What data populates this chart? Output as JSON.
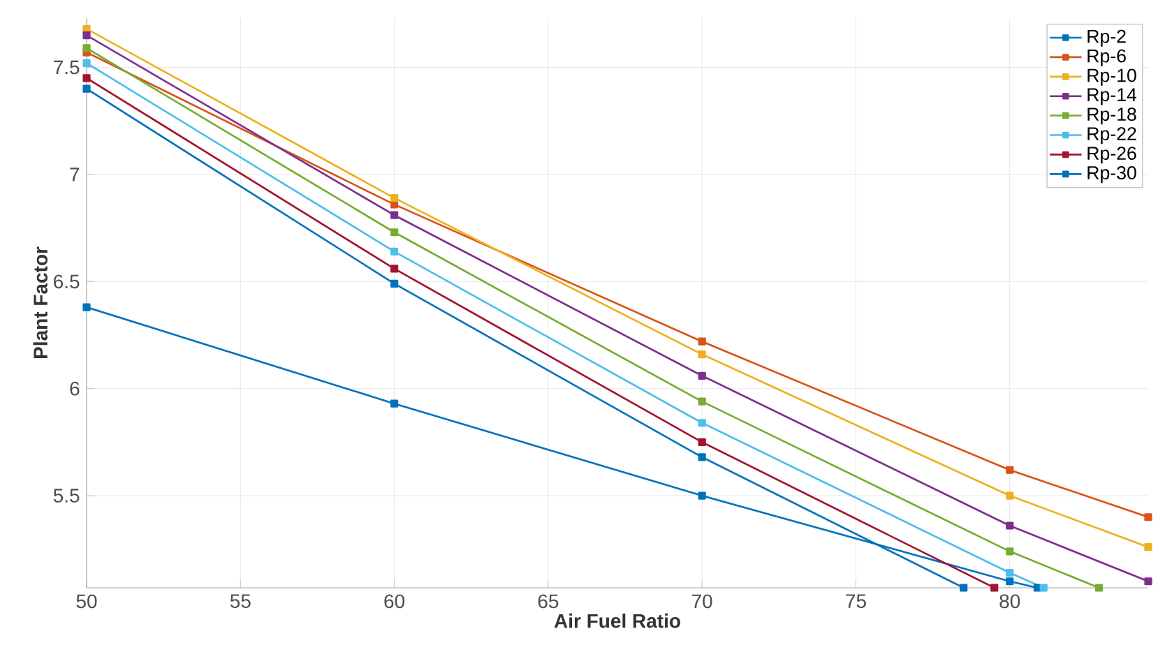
{
  "chart_data": {
    "type": "line",
    "xlabel": "Air Fuel Ratio",
    "ylabel": "Plant Factor",
    "xlim": [
      50,
      84.5
    ],
    "ylim": [
      5.07,
      7.73
    ],
    "xticks": [
      50,
      55,
      60,
      65,
      70,
      75,
      80
    ],
    "yticks": [
      5.5,
      6,
      6.5,
      7,
      7.5
    ],
    "grid": true,
    "legend": "top right",
    "marker": "square",
    "line_style": "solid",
    "series": [
      {
        "name": "Rp-2",
        "color": "#0072bd",
        "x": [
          50,
          60,
          70,
          80,
          80.9
        ],
        "values": [
          6.38,
          5.93,
          5.5,
          5.1,
          5.07
        ]
      },
      {
        "name": "Rp-6",
        "color": "#d95319",
        "x": [
          50,
          60,
          70,
          80,
          84.5
        ],
        "values": [
          7.57,
          6.86,
          6.22,
          5.62,
          5.4
        ]
      },
      {
        "name": "Rp-10",
        "color": "#edb120",
        "x": [
          50,
          60,
          70,
          80,
          84.5
        ],
        "values": [
          7.68,
          6.89,
          6.16,
          5.5,
          5.26
        ]
      },
      {
        "name": "Rp-14",
        "color": "#7e2f8e",
        "x": [
          50,
          60,
          70,
          80,
          84.5
        ],
        "values": [
          7.65,
          6.81,
          6.06,
          5.36,
          5.1
        ]
      },
      {
        "name": "Rp-18",
        "color": "#77ac30",
        "x": [
          50,
          60,
          70,
          80,
          82.9
        ],
        "values": [
          7.59,
          6.73,
          5.94,
          5.24,
          5.07
        ]
      },
      {
        "name": "Rp-22",
        "color": "#4dbeee",
        "x": [
          50,
          60,
          70,
          80,
          81.1
        ],
        "values": [
          7.52,
          6.64,
          5.84,
          5.14,
          5.07
        ]
      },
      {
        "name": "Rp-26",
        "color": "#a2142f",
        "x": [
          50,
          60,
          70,
          79.5
        ],
        "values": [
          7.45,
          6.56,
          5.75,
          5.07
        ]
      },
      {
        "name": "Rp-30",
        "color": "#0072bd",
        "x": [
          50,
          60,
          70,
          78.5
        ],
        "values": [
          7.4,
          6.49,
          5.68,
          5.07
        ]
      }
    ]
  }
}
